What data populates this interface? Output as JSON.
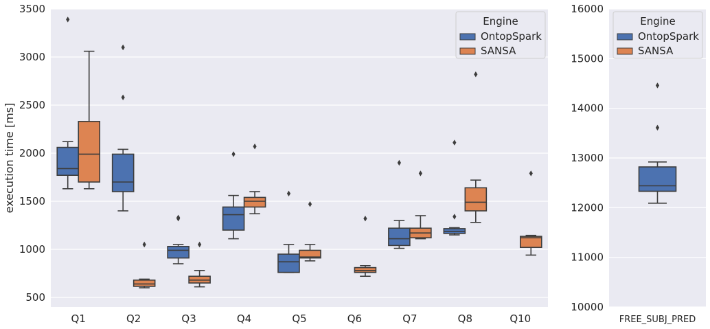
{
  "colors": {
    "background": "#EAEAF2",
    "grid": "#FFFFFF",
    "ontop": "#4C72B0",
    "sansa": "#DD8452",
    "line": "#3D3D3D"
  },
  "chart_data": [
    {
      "type": "box",
      "ylabel": "execution time [ms]",
      "ylim": [
        400,
        3500
      ],
      "yticks": [
        500,
        1000,
        1500,
        2000,
        2500,
        3000,
        3500
      ],
      "categories": [
        "Q1",
        "Q2",
        "Q3",
        "Q4",
        "Q5",
        "Q6",
        "Q7",
        "Q8",
        "Q10"
      ],
      "grid": true,
      "legend": {
        "title": "Engine",
        "position": "top-right",
        "entries": [
          "OntopSpark",
          "SANSA"
        ]
      },
      "series": [
        {
          "name": "OntopSpark",
          "color": "#4C72B0",
          "boxes": [
            {
              "category": "Q1",
              "whisker_low": 1630,
              "q1": 1770,
              "median": 1840,
              "q3": 2060,
              "whisker_high": 2120,
              "outliers": [
                3390
              ]
            },
            {
              "category": "Q2",
              "whisker_low": 1400,
              "q1": 1600,
              "median": 1700,
              "q3": 1990,
              "whisker_high": 2040,
              "outliers": [
                2580,
                3100
              ]
            },
            {
              "category": "Q3",
              "whisker_low": 850,
              "q1": 910,
              "median": 990,
              "q3": 1030,
              "whisker_high": 1050,
              "outliers": [
                1320,
                1330
              ]
            },
            {
              "category": "Q4",
              "whisker_low": 1110,
              "q1": 1200,
              "median": 1360,
              "q3": 1440,
              "whisker_high": 1560,
              "outliers": [
                1990
              ]
            },
            {
              "category": "Q5",
              "whisker_low": 760,
              "q1": 760,
              "median": 870,
              "q3": 950,
              "whisker_high": 1050,
              "outliers": [
                1580
              ]
            },
            {
              "category": "Q7",
              "whisker_low": 1010,
              "q1": 1040,
              "median": 1110,
              "q3": 1220,
              "whisker_high": 1300,
              "outliers": [
                1900
              ]
            },
            {
              "category": "Q8",
              "whisker_low": 1150,
              "q1": 1165,
              "median": 1185,
              "q3": 1215,
              "whisker_high": 1225,
              "outliers": [
                1340,
                2110
              ]
            }
          ]
        },
        {
          "name": "SANSA",
          "color": "#DD8452",
          "boxes": [
            {
              "category": "Q1",
              "whisker_low": 1630,
              "q1": 1700,
              "median": 1990,
              "q3": 2330,
              "whisker_high": 3060,
              "outliers": []
            },
            {
              "category": "Q2",
              "whisker_low": 600,
              "q1": 615,
              "median": 640,
              "q3": 680,
              "whisker_high": 690,
              "outliers": [
                1050
              ]
            },
            {
              "category": "Q3",
              "whisker_low": 610,
              "q1": 650,
              "median": 680,
              "q3": 720,
              "whisker_high": 780,
              "outliers": [
                1050
              ]
            },
            {
              "category": "Q4",
              "whisker_low": 1370,
              "q1": 1440,
              "median": 1500,
              "q3": 1540,
              "whisker_high": 1600,
              "outliers": [
                2070
              ]
            },
            {
              "category": "Q5",
              "whisker_low": 880,
              "q1": 910,
              "median": 920,
              "q3": 990,
              "whisker_high": 1050,
              "outliers": [
                1470
              ]
            },
            {
              "category": "Q6",
              "whisker_low": 720,
              "q1": 760,
              "median": 780,
              "q3": 810,
              "whisker_high": 830,
              "outliers": [
                1320
              ]
            },
            {
              "category": "Q7",
              "whisker_low": 1110,
              "q1": 1120,
              "median": 1170,
              "q3": 1220,
              "whisker_high": 1350,
              "outliers": [
                1790
              ]
            },
            {
              "category": "Q8",
              "whisker_low": 1280,
              "q1": 1400,
              "median": 1490,
              "q3": 1640,
              "whisker_high": 1720,
              "outliers": [
                2820
              ]
            },
            {
              "category": "Q10",
              "whisker_low": 940,
              "q1": 1020,
              "median": 1120,
              "q3": 1135,
              "whisker_high": 1145,
              "outliers": [
                1790
              ]
            }
          ]
        }
      ]
    },
    {
      "type": "box",
      "ylim": [
        10000,
        16000
      ],
      "yticks": [
        10000,
        11000,
        12000,
        13000,
        14000,
        15000,
        16000
      ],
      "categories": [
        "FREE_SUBJ_PRED"
      ],
      "grid": true,
      "legend": {
        "title": "Engine",
        "position": "top-left",
        "entries": [
          "OntopSpark",
          "SANSA"
        ]
      },
      "series": [
        {
          "name": "OntopSpark",
          "color": "#4C72B0",
          "boxes": [
            {
              "category": "FREE_SUBJ_PRED",
              "whisker_low": 12090,
              "q1": 12330,
              "median": 12440,
              "q3": 12820,
              "whisker_high": 12920,
              "outliers": [
                13610,
                14460
              ]
            }
          ]
        }
      ]
    }
  ]
}
